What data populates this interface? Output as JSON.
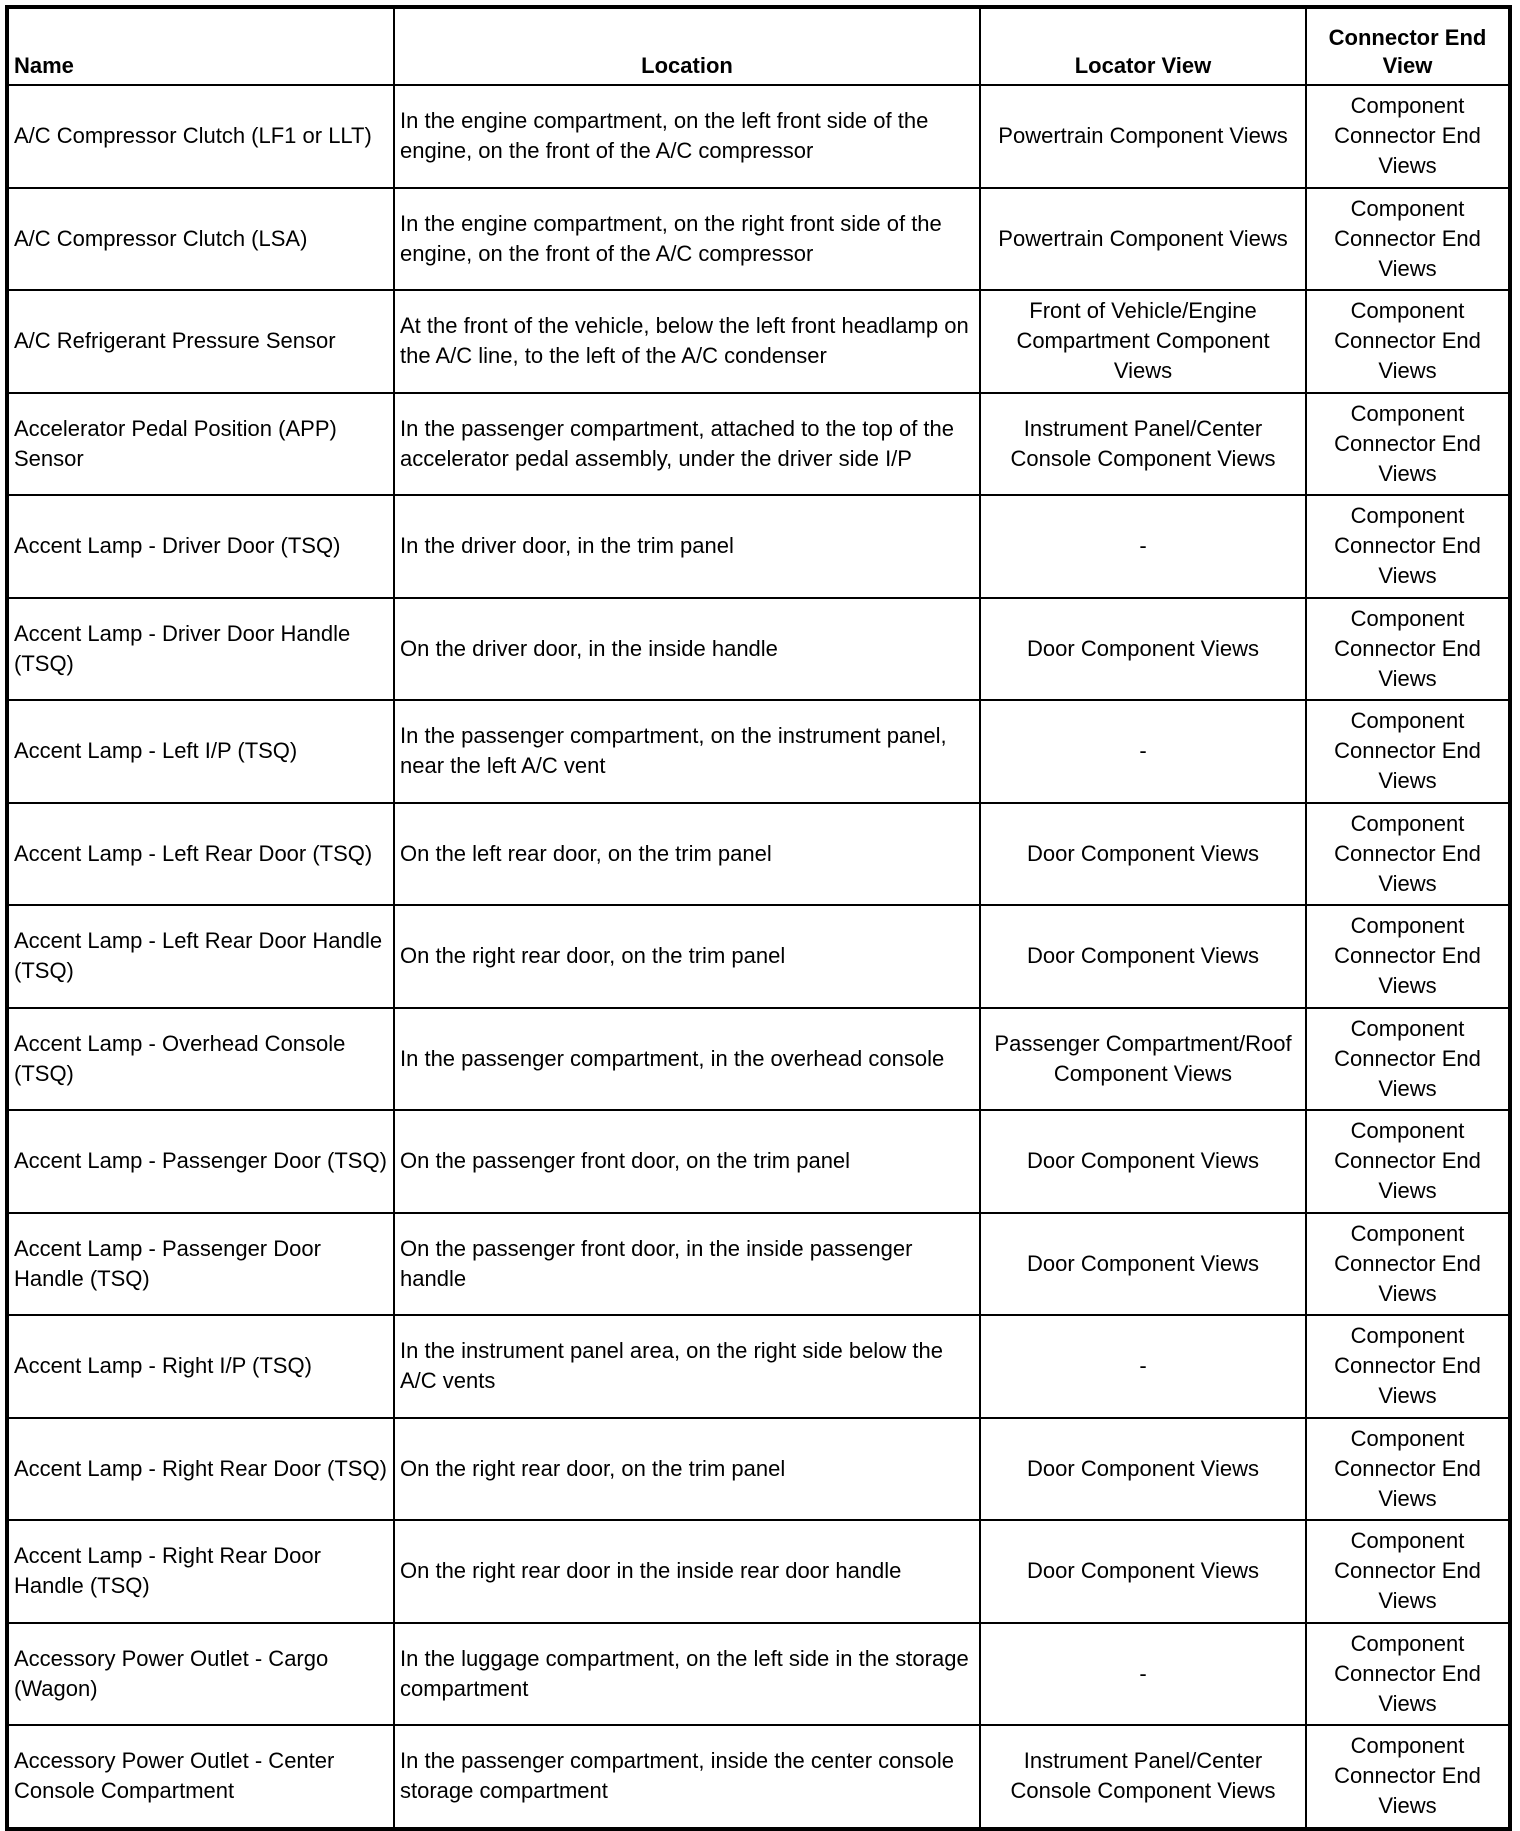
{
  "headers": [
    "Name",
    "Location",
    "Locator View",
    "Connector End View"
  ],
  "rows": [
    {
      "name": "A/C Compressor Clutch (LF1 or LLT)",
      "location": "In the engine compartment, on the left front side of the engine, on the front of the A/C compressor",
      "locator": "Powertrain Component Views",
      "connector": "Component Connector End Views"
    },
    {
      "name": "A/C Compressor Clutch (LSA)",
      "location": "In the engine compartment, on the right front side of the engine, on the front of the A/C compressor",
      "locator": "Powertrain Component Views",
      "connector": "Component Connector End Views"
    },
    {
      "name": "A/C Refrigerant Pressure Sensor",
      "location": "At the front of the vehicle, below the left front headlamp on the A/C line, to the left of the A/C condenser",
      "locator": "Front of Vehicle/Engine Compartment Component Views",
      "connector": "Component Connector End Views"
    },
    {
      "name": "Accelerator Pedal Position (APP) Sensor",
      "location": "In the passenger compartment, attached to the top of the accelerator pedal assembly, under the driver side I/P",
      "locator": "Instrument Panel/Center Console Component Views",
      "connector": "Component Connector End Views"
    },
    {
      "name": "Accent Lamp - Driver Door (TSQ)",
      "location": "In the driver door, in the trim panel",
      "locator": "-",
      "connector": "Component Connector End Views"
    },
    {
      "name": "Accent Lamp - Driver Door Handle (TSQ)",
      "location": "On the driver door, in the inside handle",
      "locator": "Door Component Views",
      "connector": "Component Connector End Views"
    },
    {
      "name": "Accent Lamp - Left I/P (TSQ)",
      "location": "In the passenger compartment, on the instrument panel, near the left A/C vent",
      "locator": "-",
      "connector": "Component Connector End Views"
    },
    {
      "name": "Accent Lamp - Left Rear Door (TSQ)",
      "location": "On the left rear door, on the trim panel",
      "locator": "Door Component Views",
      "connector": "Component Connector End Views"
    },
    {
      "name": "Accent Lamp - Left Rear Door Handle (TSQ)",
      "location": "On the right rear door, on the trim panel",
      "locator": "Door Component Views",
      "connector": "Component Connector End Views"
    },
    {
      "name": "Accent Lamp - Overhead Console (TSQ)",
      "location": "In the passenger compartment, in the overhead console",
      "locator": "Passenger Compartment/Roof Component Views",
      "connector": "Component Connector End Views"
    },
    {
      "name": "Accent Lamp - Passenger Door (TSQ)",
      "location": "On the passenger front door, on the trim panel",
      "locator": "Door Component Views",
      "connector": "Component Connector End Views"
    },
    {
      "name": "Accent Lamp - Passenger Door Handle (TSQ)",
      "location": "On the passenger front door, in the inside passenger handle",
      "locator": "Door Component Views",
      "connector": "Component Connector End Views"
    },
    {
      "name": "Accent Lamp - Right I/P (TSQ)",
      "location": "In the instrument panel area, on the right side below the A/C vents",
      "locator": "-",
      "connector": "Component Connector End Views"
    },
    {
      "name": "Accent Lamp - Right Rear Door (TSQ)",
      "location": "On the right rear door, on the trim panel",
      "locator": "Door Component Views",
      "connector": "Component Connector End Views"
    },
    {
      "name": "Accent Lamp - Right Rear Door Handle (TSQ)",
      "location": "On the right rear door in the inside rear door handle",
      "locator": "Door Component Views",
      "connector": "Component Connector End Views"
    },
    {
      "name": "Accessory Power Outlet - Cargo (Wagon)",
      "location": "In the luggage compartment, on the left side in the storage compartment",
      "locator": "-",
      "connector": "Component Connector End Views"
    },
    {
      "name": "Accessory Power Outlet - Center Console Compartment",
      "location": "In the passenger compartment, inside the center console storage compartment",
      "locator": "Instrument Panel/Center Console Component Views",
      "connector": "Component Connector End Views"
    }
  ]
}
